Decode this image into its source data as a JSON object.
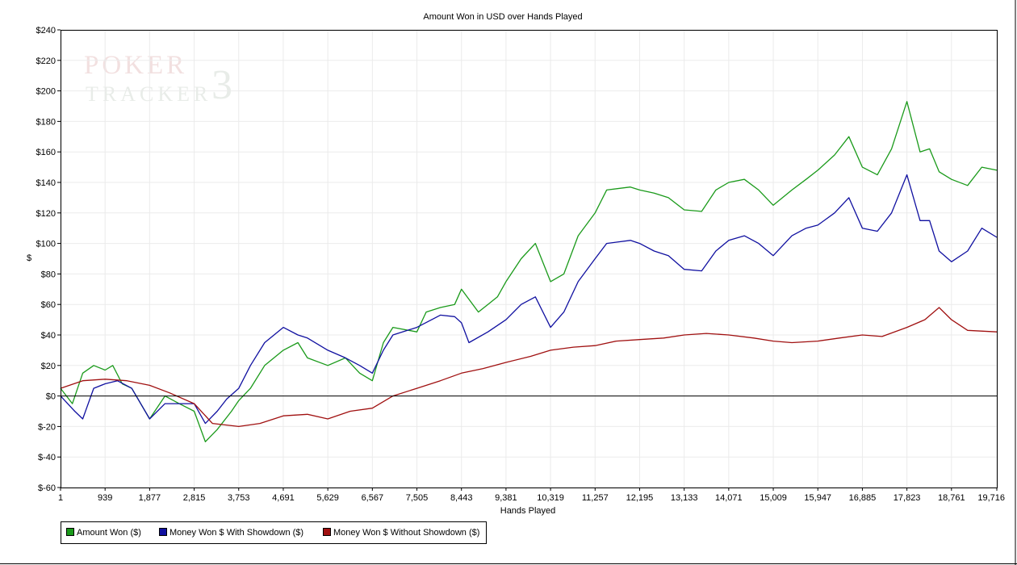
{
  "watermark": {
    "line1": "POKER",
    "line2": "TRACKER",
    "digit": "3"
  },
  "chart_data": {
    "type": "line",
    "title": "Amount Won in USD over Hands Played",
    "xlabel": "Hands Played",
    "ylabel": "$",
    "xlim": [
      1,
      19716
    ],
    "ylim": [
      -60,
      240
    ],
    "x_ticks": [
      1,
      939,
      1877,
      2815,
      3753,
      4691,
      5629,
      6567,
      7505,
      8443,
      9381,
      10319,
      11257,
      12195,
      13133,
      14071,
      15009,
      15947,
      16885,
      17823,
      18761,
      19716
    ],
    "x_tick_labels": [
      "1",
      "939",
      "1,877",
      "2,815",
      "3,753",
      "4,691",
      "5,629",
      "6,567",
      "7,505",
      "8,443",
      "9,381",
      "10,319",
      "11,257",
      "12,195",
      "13,133",
      "14,071",
      "15,009",
      "15,947",
      "16,885",
      "17,823",
      "18,761",
      "19,716"
    ],
    "y_ticks": [
      -60,
      -40,
      -20,
      0,
      20,
      40,
      60,
      80,
      100,
      120,
      140,
      160,
      180,
      200,
      220,
      240
    ],
    "y_tick_labels": [
      "$-60",
      "$-40",
      "$-20",
      "$0",
      "$20",
      "$40",
      "$60",
      "$80",
      "$100",
      "$120",
      "$140",
      "$160",
      "$180",
      "$200",
      "$220",
      "$240"
    ],
    "grid": true,
    "zero_line": true,
    "legend_position": "bottom-left",
    "series": [
      {
        "name": "Amount Won ($)",
        "color": "#1a9a1a",
        "points": [
          [
            1,
            5
          ],
          [
            250,
            -5
          ],
          [
            469,
            15
          ],
          [
            700,
            20
          ],
          [
            939,
            17
          ],
          [
            1100,
            20
          ],
          [
            1300,
            8
          ],
          [
            1500,
            5
          ],
          [
            1877,
            -15
          ],
          [
            2200,
            0
          ],
          [
            2500,
            -5
          ],
          [
            2815,
            -10
          ],
          [
            3050,
            -30
          ],
          [
            3300,
            -22
          ],
          [
            3600,
            -10
          ],
          [
            3753,
            -3
          ],
          [
            4000,
            5
          ],
          [
            4300,
            20
          ],
          [
            4691,
            30
          ],
          [
            5000,
            35
          ],
          [
            5200,
            25
          ],
          [
            5629,
            20
          ],
          [
            6000,
            25
          ],
          [
            6300,
            15
          ],
          [
            6567,
            10
          ],
          [
            6800,
            35
          ],
          [
            7000,
            45
          ],
          [
            7505,
            42
          ],
          [
            7700,
            55
          ],
          [
            8000,
            58
          ],
          [
            8300,
            60
          ],
          [
            8443,
            70
          ],
          [
            8800,
            55
          ],
          [
            9000,
            60
          ],
          [
            9200,
            65
          ],
          [
            9381,
            75
          ],
          [
            9700,
            90
          ],
          [
            10000,
            100
          ],
          [
            10319,
            75
          ],
          [
            10600,
            80
          ],
          [
            10900,
            105
          ],
          [
            11257,
            120
          ],
          [
            11500,
            135
          ],
          [
            12000,
            137
          ],
          [
            12195,
            135
          ],
          [
            12500,
            133
          ],
          [
            12800,
            130
          ],
          [
            13133,
            122
          ],
          [
            13500,
            121
          ],
          [
            13800,
            135
          ],
          [
            14071,
            140
          ],
          [
            14400,
            142
          ],
          [
            14700,
            135
          ],
          [
            15009,
            125
          ],
          [
            15400,
            135
          ],
          [
            15700,
            142
          ],
          [
            15947,
            148
          ],
          [
            16300,
            158
          ],
          [
            16600,
            170
          ],
          [
            16885,
            150
          ],
          [
            17200,
            145
          ],
          [
            17500,
            162
          ],
          [
            17823,
            193
          ],
          [
            18100,
            160
          ],
          [
            18300,
            162
          ],
          [
            18500,
            147
          ],
          [
            18761,
            142
          ],
          [
            19100,
            138
          ],
          [
            19400,
            150
          ],
          [
            19716,
            148
          ]
        ]
      },
      {
        "name": "Money Won $ With Showdown ($)",
        "color": "#1010a0",
        "points": [
          [
            1,
            0
          ],
          [
            300,
            -10
          ],
          [
            469,
            -15
          ],
          [
            700,
            5
          ],
          [
            939,
            8
          ],
          [
            1200,
            10
          ],
          [
            1500,
            5
          ],
          [
            1877,
            -15
          ],
          [
            2200,
            -5
          ],
          [
            2500,
            -5
          ],
          [
            2815,
            -5
          ],
          [
            3050,
            -18
          ],
          [
            3300,
            -10
          ],
          [
            3500,
            -2
          ],
          [
            3753,
            5
          ],
          [
            4000,
            20
          ],
          [
            4300,
            35
          ],
          [
            4691,
            45
          ],
          [
            5000,
            40
          ],
          [
            5200,
            38
          ],
          [
            5629,
            30
          ],
          [
            6000,
            25
          ],
          [
            6300,
            20
          ],
          [
            6567,
            15
          ],
          [
            6800,
            30
          ],
          [
            7000,
            40
          ],
          [
            7505,
            45
          ],
          [
            8000,
            53
          ],
          [
            8300,
            52
          ],
          [
            8443,
            48
          ],
          [
            8600,
            35
          ],
          [
            9000,
            42
          ],
          [
            9381,
            50
          ],
          [
            9700,
            60
          ],
          [
            10000,
            65
          ],
          [
            10319,
            45
          ],
          [
            10600,
            55
          ],
          [
            10900,
            75
          ],
          [
            11257,
            90
          ],
          [
            11500,
            100
          ],
          [
            12000,
            102
          ],
          [
            12195,
            100
          ],
          [
            12500,
            95
          ],
          [
            12800,
            92
          ],
          [
            13133,
            83
          ],
          [
            13500,
            82
          ],
          [
            13800,
            95
          ],
          [
            14071,
            102
          ],
          [
            14400,
            105
          ],
          [
            14700,
            100
          ],
          [
            15009,
            92
          ],
          [
            15400,
            105
          ],
          [
            15700,
            110
          ],
          [
            15947,
            112
          ],
          [
            16300,
            120
          ],
          [
            16600,
            130
          ],
          [
            16885,
            110
          ],
          [
            17200,
            108
          ],
          [
            17500,
            120
          ],
          [
            17823,
            145
          ],
          [
            18100,
            115
          ],
          [
            18300,
            115
          ],
          [
            18500,
            95
          ],
          [
            18761,
            88
          ],
          [
            19100,
            95
          ],
          [
            19400,
            110
          ],
          [
            19716,
            104
          ]
        ]
      },
      {
        "name": "Money Won $ Without Showdown ($)",
        "color": "#a01010",
        "points": [
          [
            1,
            5
          ],
          [
            469,
            10
          ],
          [
            939,
            11
          ],
          [
            1400,
            10
          ],
          [
            1877,
            7
          ],
          [
            2300,
            2
          ],
          [
            2815,
            -5
          ],
          [
            3200,
            -18
          ],
          [
            3753,
            -20
          ],
          [
            4200,
            -18
          ],
          [
            4691,
            -13
          ],
          [
            5200,
            -12
          ],
          [
            5629,
            -15
          ],
          [
            6100,
            -10
          ],
          [
            6567,
            -8
          ],
          [
            7000,
            0
          ],
          [
            7505,
            5
          ],
          [
            8000,
            10
          ],
          [
            8443,
            15
          ],
          [
            8900,
            18
          ],
          [
            9381,
            22
          ],
          [
            9900,
            26
          ],
          [
            10319,
            30
          ],
          [
            10800,
            32
          ],
          [
            11257,
            33
          ],
          [
            11700,
            36
          ],
          [
            12195,
            37
          ],
          [
            12700,
            38
          ],
          [
            13133,
            40
          ],
          [
            13600,
            41
          ],
          [
            14071,
            40
          ],
          [
            14600,
            38
          ],
          [
            15009,
            36
          ],
          [
            15400,
            35
          ],
          [
            15947,
            36
          ],
          [
            16400,
            38
          ],
          [
            16885,
            40
          ],
          [
            17300,
            39
          ],
          [
            17823,
            45
          ],
          [
            18200,
            50
          ],
          [
            18500,
            58
          ],
          [
            18761,
            50
          ],
          [
            19100,
            43
          ],
          [
            19716,
            42
          ]
        ]
      }
    ]
  }
}
